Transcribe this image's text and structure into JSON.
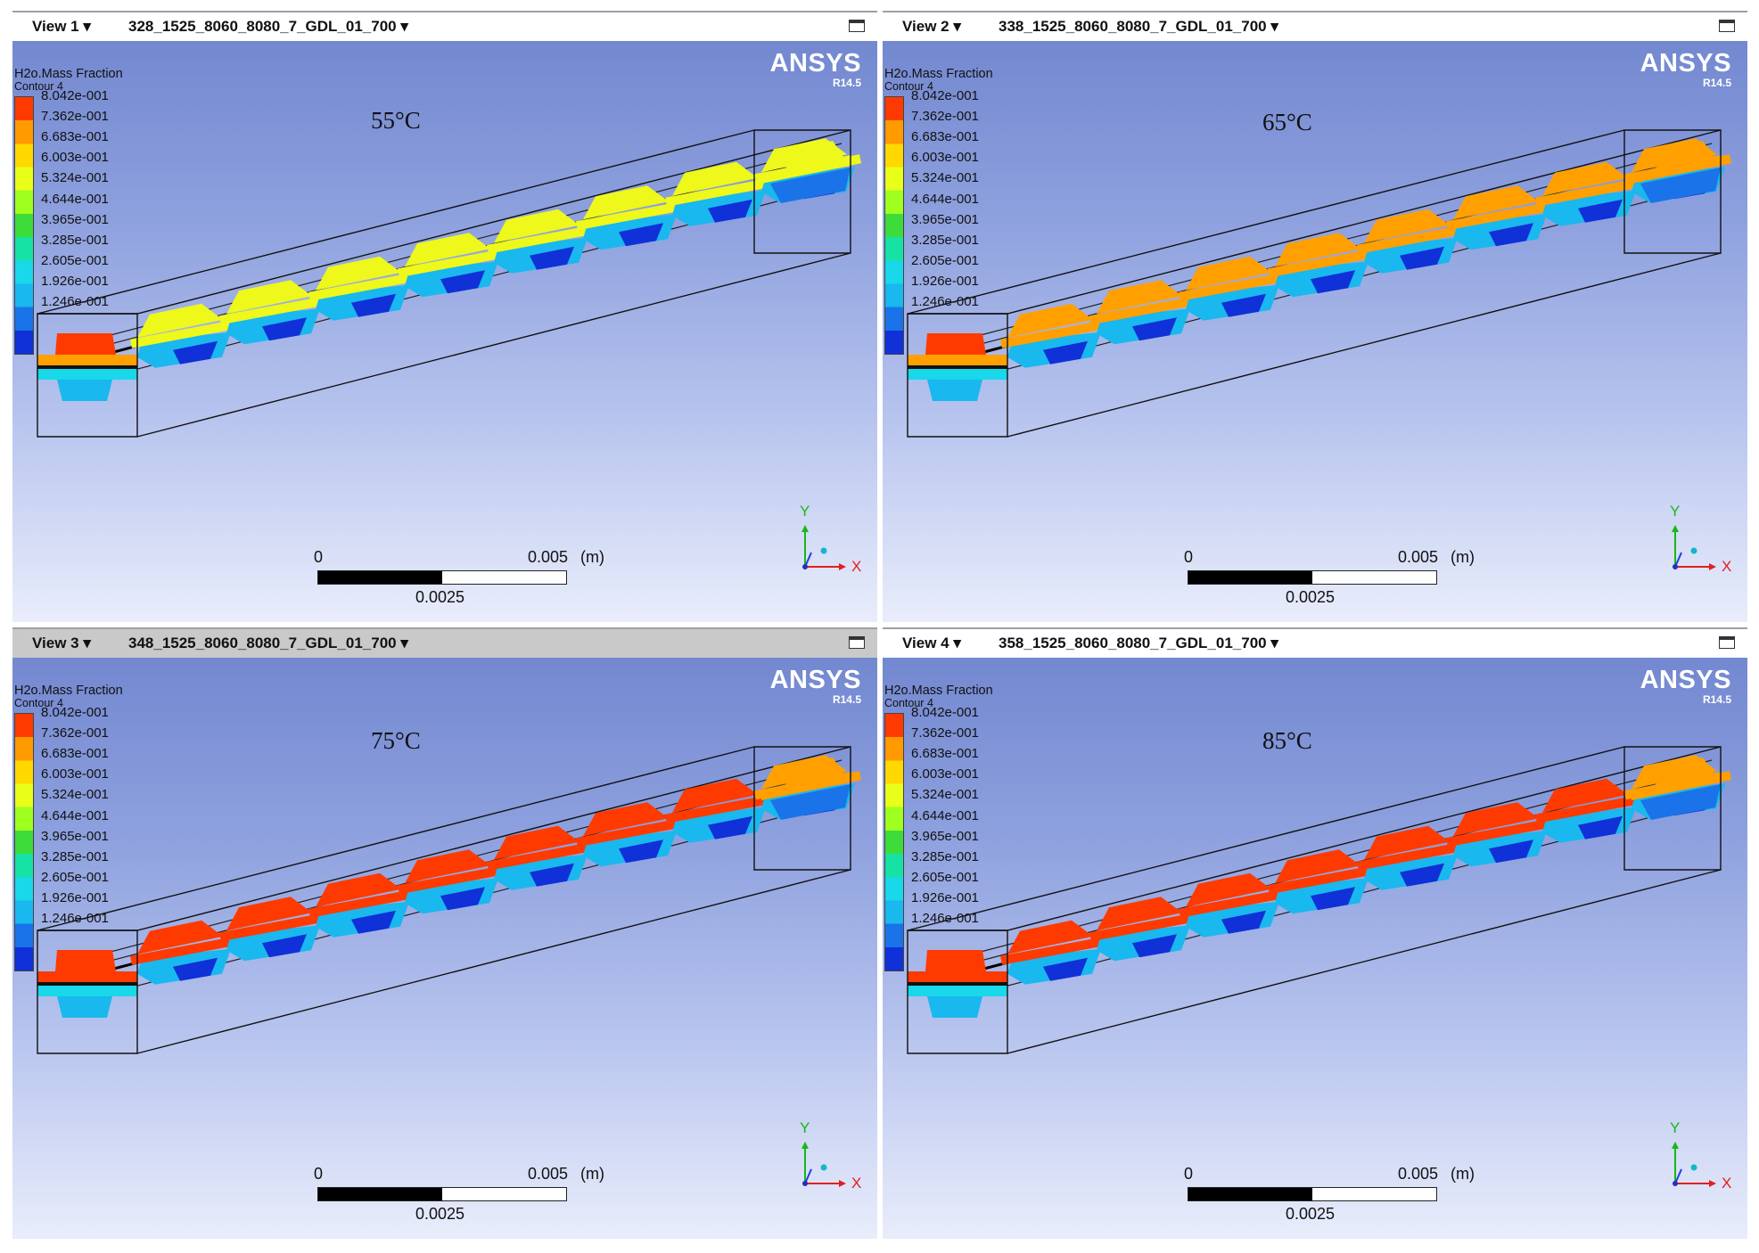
{
  "legend": {
    "title": "H2o.Mass Fraction",
    "subtitle": "Contour 4",
    "values": [
      "8.042e-001",
      "7.362e-001",
      "6.683e-001",
      "6.003e-001",
      "5.324e-001",
      "4.644e-001",
      "3.965e-001",
      "3.285e-001",
      "2.605e-001",
      "1.926e-001",
      "1.246e-001"
    ],
    "colors": [
      "#ff3a00",
      "#ff9a00",
      "#ffd800",
      "#e8ff1a",
      "#9fff1e",
      "#3ddc3b",
      "#16e2a6",
      "#18d8ea",
      "#19b8ee",
      "#1a73e8",
      "#1030d8"
    ]
  },
  "brand": {
    "name": "ANSYS",
    "version": "R14.5"
  },
  "scale": {
    "left": "0",
    "right": "0.005",
    "unit": "(m)",
    "mid": "0.0025"
  },
  "axes": {
    "y": "Y",
    "x": "X"
  },
  "colors": {
    "red": "#ff3a00",
    "orange": "#ffa000",
    "yellow": "#eef81a",
    "cyan": "#18d8ea",
    "lightblue": "#19b8ee",
    "blue": "#1a73e8",
    "darkblue": "#1030d8"
  },
  "viewports": [
    {
      "view": "View 1",
      "case": "328_1525_8060_8080_7_GDL_01_700",
      "temp": "55°C",
      "active": false,
      "inletTop": "red",
      "inletBand": "orange",
      "topColor": "yellow",
      "lastTop": "yellow",
      "lastBand": "yellow"
    },
    {
      "view": "View 2",
      "case": "338_1525_8060_8080_7_GDL_01_700",
      "temp": "65°C",
      "active": false,
      "inletTop": "red",
      "inletBand": "orange",
      "topColor": "orange",
      "lastTop": "orange",
      "lastBand": "orange"
    },
    {
      "view": "View 3",
      "case": "348_1525_8060_8080_7_GDL_01_700",
      "temp": "75°C",
      "active": true,
      "inletTop": "red",
      "inletBand": "red",
      "topColor": "red",
      "lastTop": "orange",
      "lastBand": "orange"
    },
    {
      "view": "View 4",
      "case": "358_1525_8060_8080_7_GDL_01_700",
      "temp": "85°C",
      "active": false,
      "inletTop": "red",
      "inletBand": "red",
      "topColor": "red",
      "lastTop": "orange",
      "lastBand": "orange"
    }
  ]
}
